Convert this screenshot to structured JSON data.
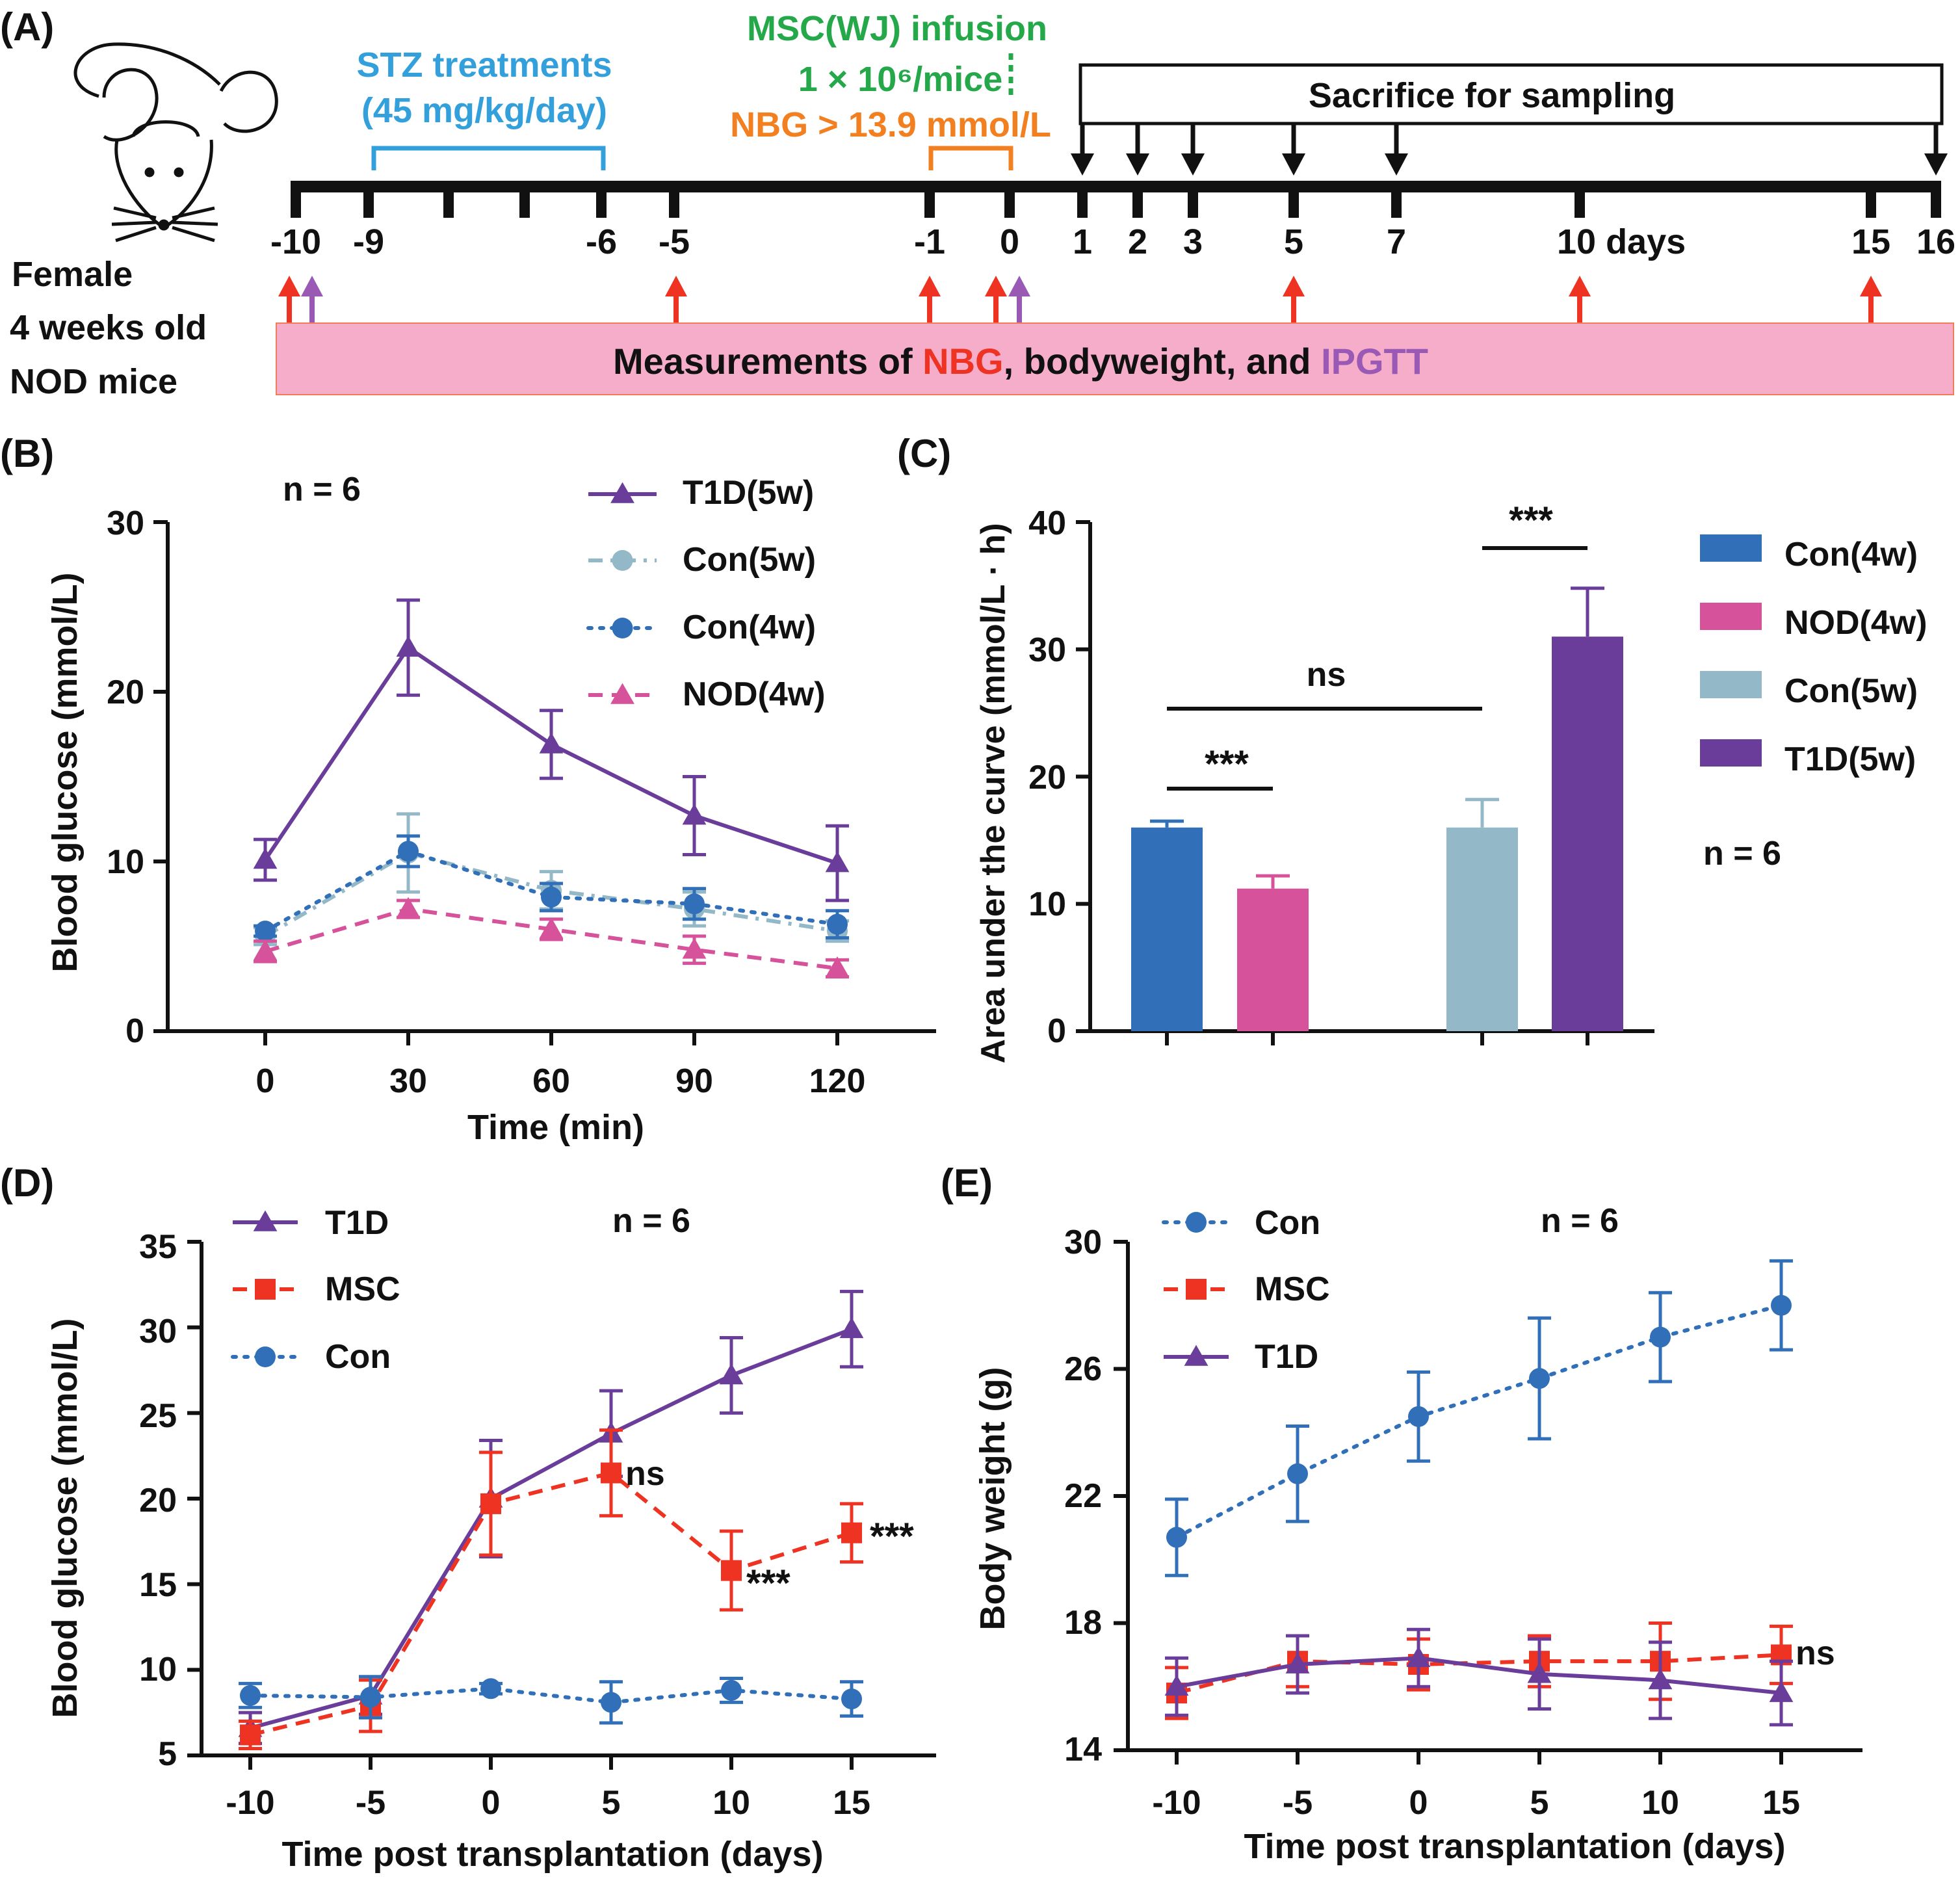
{
  "colors": {
    "purple": "#6a3d9a",
    "lightblue": "#93b8c8",
    "blue": "#3170b8",
    "pink": "#d6529b",
    "red": "#ee3322",
    "orange": "#f28021",
    "green": "#25a849",
    "cyan": "#33a0dc",
    "band": "#f5adc9",
    "band_border": "#f27d5a"
  },
  "panelA": {
    "label": "(A)",
    "mouse_text": [
      "Female",
      "4 weeks old",
      "NOD mice"
    ],
    "stz_text": [
      "STZ treatments",
      "(45 mg/kg/day)"
    ],
    "msc_text": [
      "MSC(WJ) infusion",
      "1 × 10⁶/mice"
    ],
    "nbg_threshold": "NBG > 13.9 mmol/L",
    "sacrifice_text": "Sacrifice for sampling",
    "day_labels": [
      "-10",
      "-9",
      "-6",
      "-5",
      "-1",
      "0",
      "1",
      "2",
      "3",
      "5",
      "7",
      "10 days",
      "15",
      "16"
    ],
    "band_text": {
      "part1": "Measurements of ",
      "nbg": "NBG",
      "part2": ", bodyweight, and ",
      "ipgtt": "IPGTT"
    }
  },
  "chart_data": [
    {
      "panel": "B",
      "label": "(B)",
      "type": "line",
      "n_text": "n = 6",
      "xlabel": "Time (min)",
      "ylabel": "Blood glucose (mmol/L)",
      "x": [
        0,
        30,
        60,
        90,
        120
      ],
      "xticks": [
        "0",
        "30",
        "60",
        "90",
        "120"
      ],
      "ylim": [
        0,
        30
      ],
      "yticks": [
        "0",
        "10",
        "20",
        "30"
      ],
      "series": [
        {
          "name": "T1D(5w)",
          "color": "purple",
          "marker": "triangle",
          "dash": "solid",
          "values": [
            10.1,
            22.6,
            16.9,
            12.7,
            9.9
          ],
          "errors": [
            1.2,
            2.8,
            2.0,
            2.3,
            2.2
          ]
        },
        {
          "name": "Con(5w)",
          "color": "lightblue",
          "marker": "circle",
          "dash": "dashdot",
          "values": [
            5.6,
            10.5,
            8.3,
            7.2,
            5.9
          ],
          "errors": [
            0.5,
            2.3,
            1.1,
            1.0,
            0.6
          ]
        },
        {
          "name": "Con(4w)",
          "color": "blue",
          "marker": "circle",
          "dash": "dotted",
          "values": [
            5.9,
            10.6,
            7.9,
            7.5,
            6.3
          ],
          "errors": [
            0.3,
            0.9,
            0.8,
            0.9,
            0.8
          ]
        },
        {
          "name": "NOD(4w)",
          "color": "pink",
          "marker": "triangle",
          "dash": "dashed",
          "values": [
            4.7,
            7.2,
            6.0,
            4.8,
            3.7
          ],
          "errors": [
            0.6,
            0.5,
            0.6,
            0.8,
            0.5
          ]
        }
      ]
    },
    {
      "panel": "C",
      "label": "(C)",
      "type": "bar",
      "n_text": "n = 6",
      "ylabel": "Area under the curve (mmol/L · h)",
      "ylim": [
        0,
        40
      ],
      "yticks": [
        "0",
        "10",
        "20",
        "30",
        "40"
      ],
      "categories": [
        "Con(4w)",
        "NOD(4w)",
        "Con(5w)",
        "T1D(5w)"
      ],
      "values": [
        16.0,
        11.2,
        16.0,
        31.0
      ],
      "errors": [
        0.5,
        1.0,
        2.2,
        3.8
      ],
      "colors": [
        "blue",
        "pink",
        "lightblue",
        "purple"
      ],
      "annotations": [
        "***",
        "ns",
        "***"
      ]
    },
    {
      "panel": "D",
      "label": "(D)",
      "type": "line",
      "n_text": "n = 6",
      "xlabel": "Time post transplantation (days)",
      "ylabel": "Blood glucose (mmol/L)",
      "x": [
        -10,
        -5,
        0,
        5,
        10,
        15
      ],
      "xticks": [
        "-10",
        "-5",
        "0",
        "5",
        "10",
        "15"
      ],
      "ylim": [
        5,
        35
      ],
      "yticks": [
        "5",
        "10",
        "15",
        "20",
        "25",
        "30",
        "35"
      ],
      "series": [
        {
          "name": "T1D",
          "color": "purple",
          "marker": "triangle",
          "dash": "solid",
          "values": [
            6.6,
            8.5,
            20.0,
            23.8,
            27.2,
            29.9
          ],
          "errors": [
            0.9,
            1.1,
            3.4,
            2.5,
            2.2,
            2.2
          ]
        },
        {
          "name": "MSC",
          "color": "red",
          "marker": "square",
          "dash": "dashed",
          "values": [
            6.2,
            7.9,
            19.7,
            21.5,
            15.8,
            18.0
          ],
          "errors": [
            0.8,
            1.5,
            3.0,
            2.5,
            2.3,
            1.7
          ]
        },
        {
          "name": "Con",
          "color": "blue",
          "marker": "circle",
          "dash": "dotted",
          "values": [
            8.5,
            8.4,
            8.9,
            8.1,
            8.8,
            8.3
          ],
          "errors": [
            0.7,
            1.2,
            0.3,
            1.2,
            0.7,
            1.0
          ]
        }
      ],
      "annotations": [
        "ns",
        "***",
        "***"
      ]
    },
    {
      "panel": "E",
      "label": "(E)",
      "type": "line",
      "n_text": "n = 6",
      "xlabel": "Time post transplantation (days)",
      "ylabel": "Body weight (g)",
      "x": [
        -10,
        -5,
        0,
        5,
        10,
        15
      ],
      "xticks": [
        "-10",
        "-5",
        "0",
        "5",
        "10",
        "15"
      ],
      "ylim": [
        14,
        30
      ],
      "yticks": [
        "14",
        "18",
        "22",
        "26",
        "30"
      ],
      "series": [
        {
          "name": "Con",
          "color": "blue",
          "marker": "circle",
          "dash": "dotted",
          "values": [
            20.7,
            22.7,
            24.5,
            25.7,
            27.0,
            28.0
          ],
          "errors": [
            1.2,
            1.5,
            1.4,
            1.9,
            1.4,
            1.4
          ]
        },
        {
          "name": "MSC",
          "color": "red",
          "marker": "square",
          "dash": "dashed",
          "values": [
            15.8,
            16.8,
            16.7,
            16.8,
            16.8,
            17.0
          ],
          "errors": [
            0.8,
            0.8,
            0.8,
            0.8,
            1.2,
            0.9
          ]
        },
        {
          "name": "T1D",
          "color": "purple",
          "marker": "triangle",
          "dash": "solid",
          "values": [
            16.0,
            16.7,
            16.9,
            16.4,
            16.2,
            15.8
          ],
          "errors": [
            0.9,
            0.9,
            0.9,
            1.1,
            1.2,
            1.0
          ]
        }
      ],
      "annotations": [
        "ns"
      ]
    }
  ]
}
